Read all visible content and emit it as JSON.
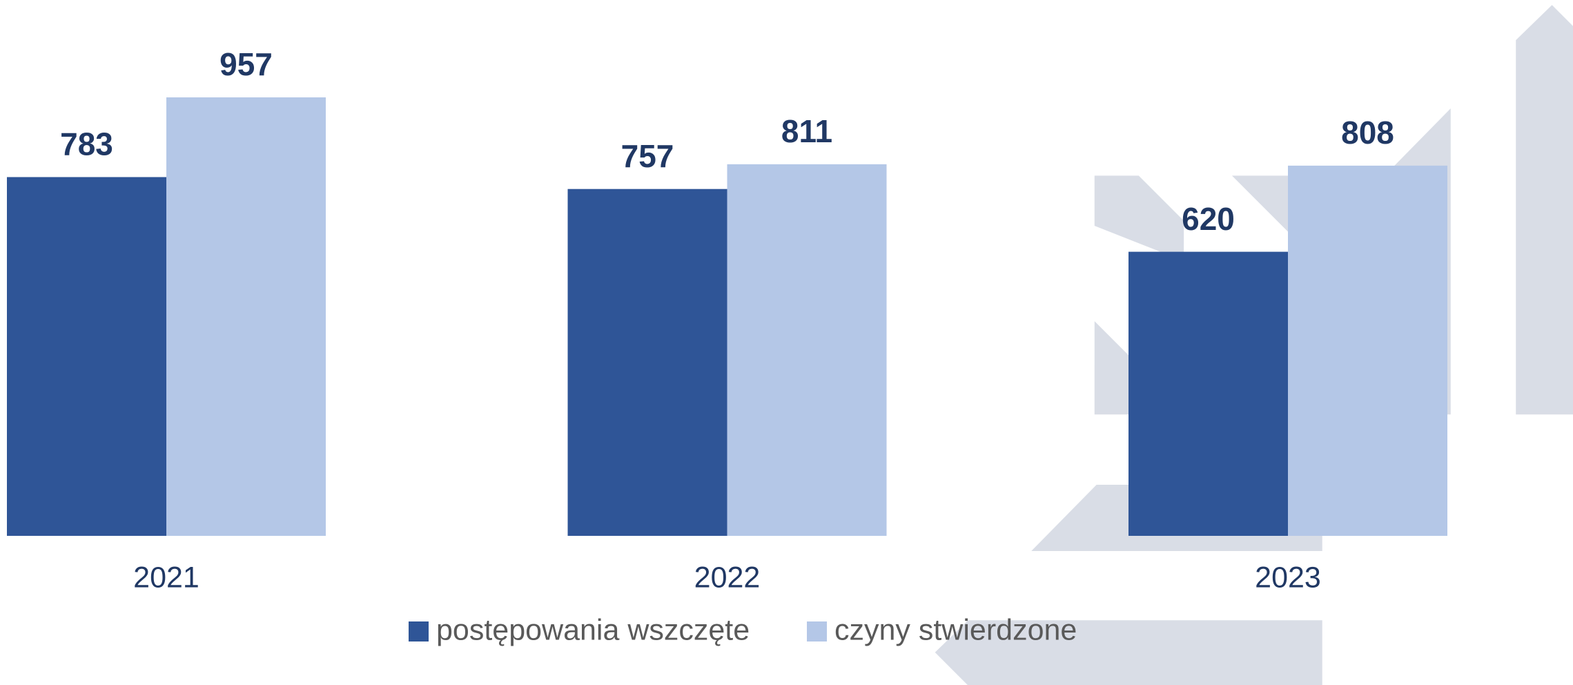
{
  "chart_data": {
    "type": "bar",
    "categories": [
      "2021",
      "2022",
      "2023"
    ],
    "series": [
      {
        "name": "postępowania wszczęte",
        "color": "#2f5597",
        "values": [
          783,
          757,
          620
        ]
      },
      {
        "name": "czyny stwierdzone",
        "color": "#b4c7e7",
        "values": [
          957,
          811,
          808
        ]
      }
    ],
    "legend": "bottom"
  }
}
